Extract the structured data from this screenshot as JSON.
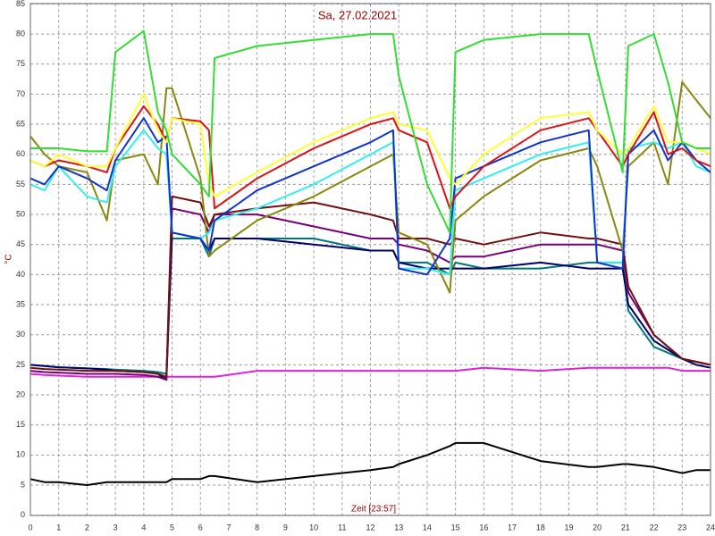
{
  "chart_data": {
    "type": "line",
    "title": "Sa, 27.02.2021",
    "xlabel": "Zeit [23:57]",
    "ylabel": "°C",
    "x": [
      0,
      0.5,
      1,
      2,
      2.7,
      3,
      4,
      4.5,
      4.8,
      5,
      6,
      6.3,
      6.5,
      8,
      10,
      12,
      12.8,
      13,
      14,
      14.8,
      15,
      16,
      18,
      19.7,
      20,
      20.9,
      21.1,
      22,
      22.5,
      23,
      23.5,
      24
    ],
    "xlim": [
      0,
      24
    ],
    "xticks": [
      0,
      1,
      2,
      3,
      4,
      5,
      6,
      7,
      8,
      9,
      10,
      11,
      12,
      13,
      14,
      15,
      16,
      17,
      18,
      19,
      20,
      21,
      22,
      23,
      24
    ],
    "ylim": [
      0,
      85
    ],
    "yticks": [
      0,
      5,
      10,
      15,
      20,
      25,
      30,
      35,
      40,
      45,
      50,
      55,
      60,
      65,
      70,
      75,
      80,
      85
    ],
    "grid": true,
    "series": [
      {
        "color": "#000000",
        "values": [
          6,
          5.5,
          5.5,
          5,
          5.5,
          5.5,
          5.5,
          5.5,
          5.5,
          6,
          6,
          6.5,
          6.5,
          5.5,
          6.5,
          7.5,
          8,
          8.5,
          10,
          11.5,
          12,
          12,
          9,
          8,
          8,
          8.5,
          8.5,
          8,
          7.5,
          7,
          7.5,
          7.5
        ]
      },
      {
        "color": "#dd22dd",
        "values": [
          23.5,
          23.3,
          23.2,
          23,
          23,
          23,
          23,
          23,
          23,
          23,
          23,
          23,
          23,
          24,
          24,
          24,
          24,
          24,
          24,
          24,
          24,
          24.5,
          24,
          24.5,
          24.5,
          24.5,
          24.5,
          24.5,
          24.5,
          24,
          24,
          24
        ]
      },
      {
        "color": "#007777",
        "values": [
          25,
          24.8,
          24.6,
          24.4,
          24.3,
          24.2,
          24,
          23.8,
          23.5,
          46,
          46,
          43,
          46,
          46,
          46,
          44,
          44,
          42,
          42,
          40,
          42,
          41,
          41,
          42,
          42,
          42,
          34,
          28,
          27,
          26,
          25.5,
          25
        ]
      },
      {
        "color": "#000066",
        "values": [
          25,
          24.8,
          24.6,
          24.4,
          24.2,
          24,
          23.8,
          23.5,
          22.5,
          47,
          46,
          44,
          46,
          46,
          45,
          44,
          44,
          42,
          41,
          41,
          41,
          41,
          42,
          41,
          41,
          41,
          35,
          29,
          27.5,
          26,
          25,
          24.5
        ]
      },
      {
        "color": "#770077",
        "values": [
          24,
          23.8,
          23.7,
          23.5,
          23.5,
          23.5,
          23.3,
          23,
          22.5,
          51,
          50,
          47,
          50,
          50,
          48,
          46,
          46,
          45,
          44,
          42,
          43,
          43,
          45,
          45,
          45,
          44,
          37,
          30,
          28,
          26,
          25.5,
          25
        ]
      },
      {
        "color": "#701010",
        "values": [
          24.5,
          24.3,
          24.2,
          24,
          24,
          24,
          23.8,
          23.5,
          23,
          53,
          52,
          48,
          50,
          51,
          52,
          50,
          49,
          46,
          46,
          45,
          46,
          45,
          47,
          46,
          46,
          45,
          38,
          30,
          28,
          26,
          25.5,
          25
        ]
      },
      {
        "color": "#888811",
        "values": [
          63,
          60,
          58,
          57,
          49,
          59,
          60,
          55,
          71,
          71,
          56,
          43,
          44,
          49,
          53,
          58,
          60,
          47,
          45,
          37,
          49,
          53,
          59,
          61,
          58,
          44,
          58,
          62,
          55,
          72,
          69,
          66
        ]
      },
      {
        "color": "#33eeee",
        "values": [
          55,
          54,
          58,
          53,
          52,
          58,
          64,
          61,
          60,
          47,
          46,
          47,
          49,
          51,
          55,
          60,
          62,
          41,
          41,
          40,
          54,
          56,
          60,
          62,
          42,
          42,
          61,
          62,
          61,
          62,
          58,
          57
        ]
      },
      {
        "color": "#1133cc",
        "values": [
          56,
          55,
          58,
          56,
          54,
          59,
          66,
          62,
          63,
          47,
          46,
          44,
          49,
          54,
          58,
          62,
          64,
          41,
          40,
          46,
          56,
          58,
          62,
          64,
          42,
          41,
          60,
          64,
          59,
          62,
          59,
          57
        ]
      },
      {
        "color": "#dd1111",
        "values": [
          59,
          58,
          59,
          58,
          57,
          61,
          68,
          65,
          62,
          66,
          65.5,
          64,
          51,
          56,
          61,
          65,
          66,
          64,
          62,
          51,
          53,
          58,
          64,
          66,
          64,
          58,
          60,
          67,
          60,
          61,
          59,
          58
        ]
      },
      {
        "color": "#ffff33",
        "values": [
          59,
          58,
          60,
          58,
          58,
          61,
          70,
          64,
          62,
          66,
          65,
          55,
          53,
          57,
          62,
          66,
          67,
          65,
          64,
          56,
          55,
          60,
          66,
          67,
          64,
          60,
          61,
          68,
          62,
          62,
          61,
          60
        ]
      },
      {
        "color": "#33dd33",
        "values": [
          61,
          61,
          61,
          60.5,
          60.5,
          77,
          80.5,
          67,
          64,
          60,
          55,
          53,
          76,
          78,
          79,
          80,
          80,
          73,
          55,
          47,
          77,
          79,
          80,
          80,
          74,
          57,
          78,
          80,
          72,
          62,
          61,
          61
        ]
      }
    ]
  }
}
